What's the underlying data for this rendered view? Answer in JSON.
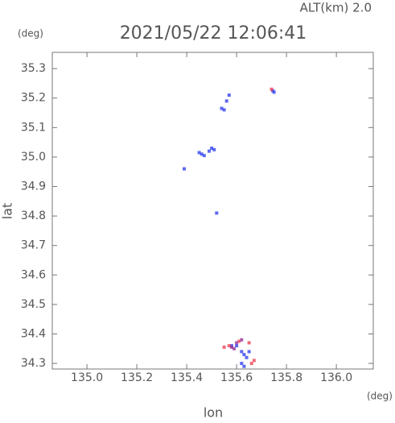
{
  "chart_data": {
    "type": "scatter",
    "title": "2021/05/22 12:06:41",
    "subtitle": "ALT(km) 2.0",
    "y_unit": "(deg)",
    "x_unit": "(deg)",
    "x_label": "lon",
    "y_label": "lat",
    "xlim": [
      134.861,
      136.148
    ],
    "ylim": [
      34.281,
      35.355
    ],
    "xticks": [
      {
        "value": 135.0,
        "label": "135.0"
      },
      135.2,
      135.4,
      135.6,
      135.8,
      {
        "value": 136.0,
        "label": "136.0"
      }
    ],
    "yticks": [
      34.3,
      34.4,
      34.5,
      34.6,
      34.7,
      34.8,
      34.9,
      {
        "value": 35.0,
        "label": "35.0"
      },
      35.1,
      35.2,
      35.3
    ],
    "series": [
      {
        "color": "#3344ee",
        "x": [
          135.745,
          135.75,
          135.54,
          135.55,
          135.56,
          135.57,
          135.46,
          135.45,
          135.47,
          135.5,
          135.51,
          135.49,
          135.39,
          135.52,
          135.62,
          135.63,
          135.64,
          135.62,
          135.65,
          135.58,
          135.6,
          135.63
        ],
        "values": [
          35.225,
          35.22,
          35.165,
          35.16,
          35.19,
          35.21,
          35.01,
          35.015,
          35.005,
          35.03,
          35.025,
          35.02,
          34.96,
          34.81,
          34.34,
          34.33,
          34.32,
          34.3,
          34.34,
          34.36,
          34.36,
          34.29
        ]
      },
      {
        "color": "#ee4455",
        "x": [
          135.74,
          135.66,
          135.67,
          135.55,
          135.57,
          135.65,
          135.61
        ],
        "values": [
          35.23,
          34.3,
          34.31,
          34.355,
          34.36,
          34.37,
          34.375
        ]
      },
      {
        "color": "#993399",
        "x": [
          135.59,
          135.58,
          135.6,
          135.62
        ],
        "values": [
          34.35,
          34.355,
          34.37,
          34.38
        ]
      }
    ]
  }
}
